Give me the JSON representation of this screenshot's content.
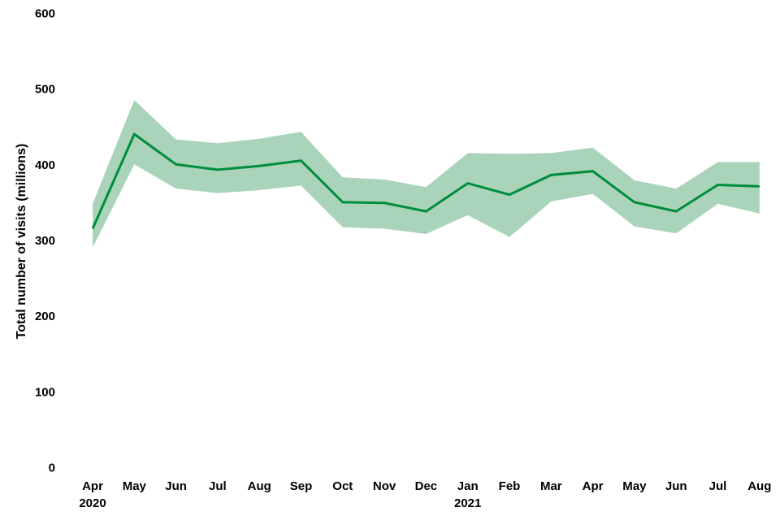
{
  "chart_data": {
    "type": "line",
    "title": "",
    "ylabel": "Total number of visits (millions)",
    "xlabel": "",
    "ylim": [
      0,
      600
    ],
    "y_ticks": [
      0,
      100,
      200,
      300,
      400,
      500,
      600
    ],
    "categories": [
      "Apr 2020",
      "May 2020",
      "Jun 2020",
      "Jul 2020",
      "Aug 2020",
      "Sep 2020",
      "Oct 2020",
      "Nov 2020",
      "Dec 2020",
      "Jan 2021",
      "Feb 2021",
      "Mar 2021",
      "Apr 2021",
      "May 2021",
      "Jun 2021",
      "Jul 2021",
      "Aug 2021"
    ],
    "x_tick_months": [
      "Apr",
      "May",
      "Jun",
      "Jul",
      "Aug",
      "Sep",
      "Oct",
      "Nov",
      "Dec",
      "Jan",
      "Feb",
      "Mar",
      "Apr",
      "May",
      "Jun",
      "Jul",
      "Aug"
    ],
    "x_tick_years": {
      "0": "2020",
      "9": "2021"
    },
    "series": [
      {
        "name": "Total number of visits",
        "values": [
          315,
          440,
          400,
          393,
          398,
          405,
          350,
          349,
          338,
          375,
          360,
          386,
          391,
          350,
          338,
          373,
          371
        ]
      }
    ],
    "band": {
      "name": "uncertainty-interval",
      "lower": [
        290,
        400,
        368,
        362,
        366,
        372,
        317,
        315,
        308,
        333,
        304,
        351,
        361,
        318,
        309,
        348,
        335
      ],
      "upper": [
        348,
        485,
        433,
        428,
        434,
        443,
        383,
        380,
        370,
        415,
        414,
        415,
        422,
        379,
        368,
        403,
        403
      ]
    },
    "colors": {
      "line": "#008d3c",
      "band": "#aad4ba"
    },
    "grid": false,
    "legend": "none"
  }
}
